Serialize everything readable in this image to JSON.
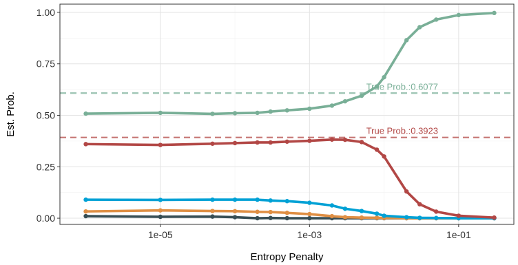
{
  "chart_data": {
    "type": "line",
    "xlabel": "Entropy Penalty",
    "ylabel": "Est. Prob.",
    "xscale": "log",
    "xlim": [
      4.5e-07,
      0.55
    ],
    "ylim": [
      -0.03,
      1.04
    ],
    "x_ticks": [
      1e-05,
      0.001,
      0.1
    ],
    "x_tick_labels": [
      "1e-05",
      "1e-03",
      "1e-01"
    ],
    "y_ticks": [
      0,
      0.25,
      0.5,
      0.75,
      1.0
    ],
    "y_tick_labels": [
      "0.00",
      "0.25",
      "0.50",
      "0.75",
      "1.00"
    ],
    "grid": true,
    "legend": "none",
    "x": [
      1e-06,
      1e-05,
      5e-05,
      0.0001,
      0.0002,
      0.0003,
      0.0005,
      0.001,
      0.002,
      0.003,
      0.005,
      0.008,
      0.01,
      0.02,
      0.03,
      0.05,
      0.1,
      0.3
    ],
    "series": [
      {
        "color": "#79af97",
        "values": [
          0.508,
          0.512,
          0.507,
          0.51,
          0.512,
          0.518,
          0.524,
          0.532,
          0.547,
          0.568,
          0.595,
          0.64,
          0.685,
          0.865,
          0.928,
          0.965,
          0.987,
          0.997
        ]
      },
      {
        "color": "#b24745",
        "values": [
          0.36,
          0.356,
          0.362,
          0.365,
          0.368,
          0.368,
          0.372,
          0.376,
          0.382,
          0.381,
          0.37,
          0.333,
          0.3,
          0.13,
          0.068,
          0.032,
          0.012,
          0.003
        ]
      },
      {
        "color": "#00a1d5",
        "values": [
          0.09,
          0.089,
          0.09,
          0.09,
          0.09,
          0.086,
          0.083,
          0.075,
          0.062,
          0.046,
          0.035,
          0.022,
          0.012,
          0.005,
          0.002,
          0.001,
          0.0,
          0.0
        ]
      },
      {
        "color": "#df8f44",
        "values": [
          0.033,
          0.038,
          0.035,
          0.034,
          0.031,
          0.03,
          0.026,
          0.02,
          0.01,
          0.005,
          0.003,
          0.002,
          0.001,
          0.0,
          0.0,
          0.0,
          0.0,
          0.0
        ]
      },
      {
        "color": "#374e55",
        "values": [
          0.01,
          0.007,
          0.008,
          0.005,
          0.0,
          0.001,
          0.0,
          0.0,
          0.0,
          0.0,
          0.0,
          0.0,
          0.0,
          0.0,
          0.0,
          0.0,
          0.0,
          0.0
        ]
      }
    ],
    "reference_lines": [
      {
        "value": 0.6077,
        "label": "True Prob.:0.6077",
        "color": "#79af97"
      },
      {
        "value": 0.3923,
        "label": "True Prob.:0.3923",
        "color": "#b24745"
      }
    ]
  }
}
